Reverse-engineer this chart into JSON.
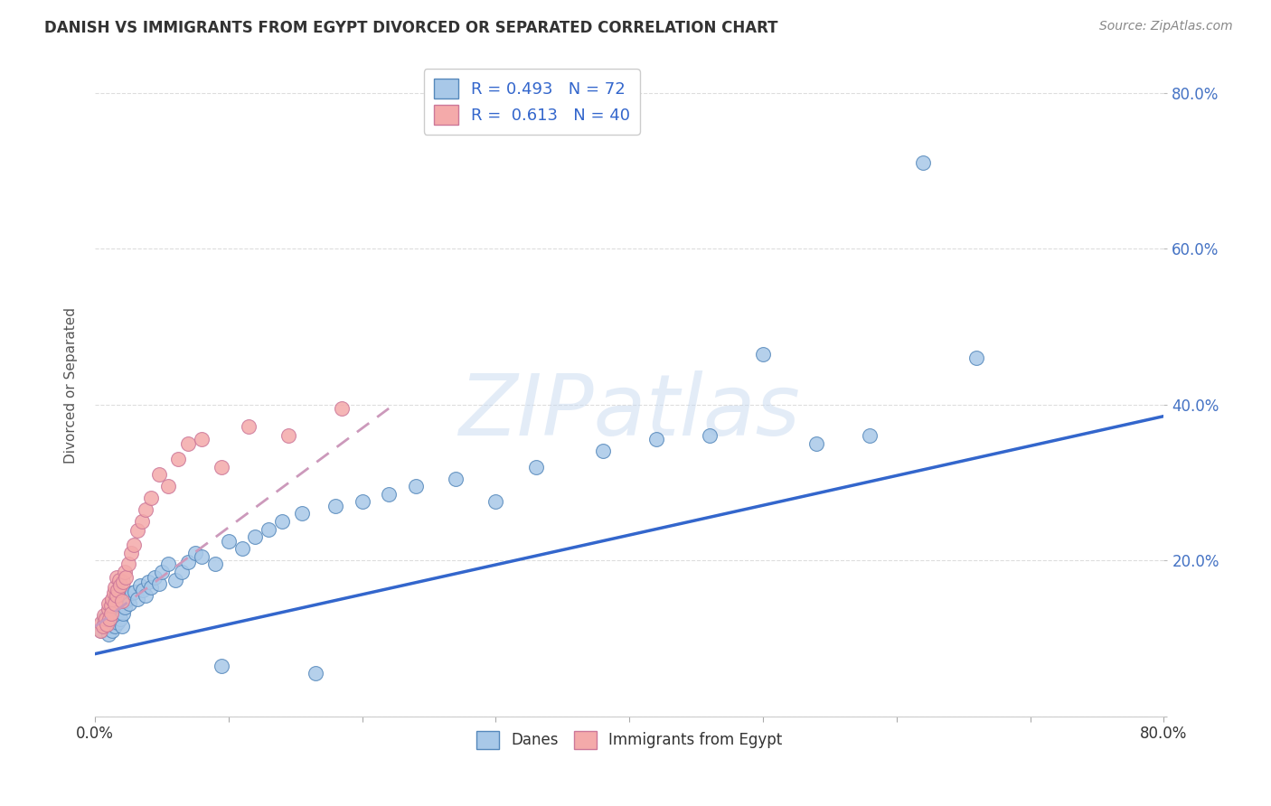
{
  "title": "DANISH VS IMMIGRANTS FROM EGYPT DIVORCED OR SEPARATED CORRELATION CHART",
  "source": "Source: ZipAtlas.com",
  "ylabel": "Divorced or Separated",
  "watermark": "ZIPatlas",
  "xmin": 0.0,
  "xmax": 0.8,
  "ymin": 0.0,
  "ymax": 0.85,
  "ytick_positions": [
    0.0,
    0.2,
    0.4,
    0.6,
    0.8
  ],
  "ytick_labels": [
    "",
    "20.0%",
    "40.0%",
    "60.0%",
    "80.0%"
  ],
  "xtick_positions": [
    0.0,
    0.1,
    0.2,
    0.3,
    0.4,
    0.5,
    0.6,
    0.7,
    0.8
  ],
  "xtick_labels": [
    "0.0%",
    "",
    "",
    "",
    "",
    "",
    "",
    "",
    "80.0%"
  ],
  "blue_scatter_color": "#a8c8e8",
  "blue_scatter_edge": "#5588bb",
  "pink_scatter_color": "#f4aaaa",
  "pink_scatter_edge": "#cc7799",
  "blue_line_color": "#3366cc",
  "pink_line_color": "#cc99bb",
  "legend_blue_R": "0.493",
  "legend_blue_N": "72",
  "legend_pink_R": "0.613",
  "legend_pink_N": "40",
  "blue_line_x0": 0.0,
  "blue_line_y0": 0.08,
  "blue_line_x1": 0.8,
  "blue_line_y1": 0.385,
  "pink_line_x0": 0.0,
  "pink_line_y0": 0.115,
  "pink_line_x1": 0.22,
  "pink_line_y1": 0.395,
  "danes_x": [
    0.005,
    0.007,
    0.008,
    0.009,
    0.01,
    0.01,
    0.011,
    0.011,
    0.012,
    0.012,
    0.013,
    0.013,
    0.014,
    0.014,
    0.015,
    0.015,
    0.016,
    0.016,
    0.017,
    0.017,
    0.018,
    0.018,
    0.019,
    0.02,
    0.02,
    0.021,
    0.021,
    0.022,
    0.023,
    0.025,
    0.026,
    0.028,
    0.03,
    0.032,
    0.034,
    0.036,
    0.038,
    0.04,
    0.042,
    0.045,
    0.048,
    0.05,
    0.055,
    0.06,
    0.065,
    0.07,
    0.075,
    0.08,
    0.09,
    0.095,
    0.1,
    0.11,
    0.12,
    0.13,
    0.14,
    0.155,
    0.165,
    0.18,
    0.2,
    0.22,
    0.24,
    0.27,
    0.3,
    0.33,
    0.38,
    0.42,
    0.46,
    0.5,
    0.54,
    0.58,
    0.62,
    0.66
  ],
  "danes_y": [
    0.11,
    0.125,
    0.115,
    0.13,
    0.105,
    0.12,
    0.135,
    0.115,
    0.125,
    0.14,
    0.11,
    0.13,
    0.12,
    0.145,
    0.135,
    0.115,
    0.128,
    0.142,
    0.12,
    0.138,
    0.132,
    0.148,
    0.125,
    0.115,
    0.142,
    0.132,
    0.155,
    0.14,
    0.148,
    0.152,
    0.145,
    0.158,
    0.16,
    0.15,
    0.168,
    0.162,
    0.155,
    0.172,
    0.165,
    0.178,
    0.17,
    0.185,
    0.195,
    0.175,
    0.185,
    0.198,
    0.21,
    0.205,
    0.195,
    0.065,
    0.225,
    0.215,
    0.23,
    0.24,
    0.25,
    0.26,
    0.055,
    0.27,
    0.275,
    0.285,
    0.295,
    0.305,
    0.275,
    0.32,
    0.34,
    0.355,
    0.36,
    0.465,
    0.35,
    0.36,
    0.71,
    0.46
  ],
  "egypt_x": [
    0.004,
    0.005,
    0.006,
    0.007,
    0.008,
    0.009,
    0.01,
    0.01,
    0.011,
    0.012,
    0.012,
    0.013,
    0.014,
    0.015,
    0.015,
    0.016,
    0.016,
    0.017,
    0.018,
    0.019,
    0.02,
    0.021,
    0.022,
    0.023,
    0.025,
    0.027,
    0.029,
    0.032,
    0.035,
    0.038,
    0.042,
    0.048,
    0.055,
    0.062,
    0.07,
    0.08,
    0.095,
    0.115,
    0.145,
    0.185
  ],
  "egypt_y": [
    0.11,
    0.12,
    0.115,
    0.13,
    0.125,
    0.118,
    0.138,
    0.145,
    0.125,
    0.142,
    0.132,
    0.15,
    0.158,
    0.145,
    0.165,
    0.155,
    0.178,
    0.162,
    0.175,
    0.168,
    0.148,
    0.172,
    0.185,
    0.178,
    0.195,
    0.21,
    0.22,
    0.238,
    0.25,
    0.265,
    0.28,
    0.31,
    0.295,
    0.33,
    0.35,
    0.355,
    0.32,
    0.372,
    0.36,
    0.395
  ],
  "background_color": "#ffffff",
  "grid_color": "#dddddd"
}
